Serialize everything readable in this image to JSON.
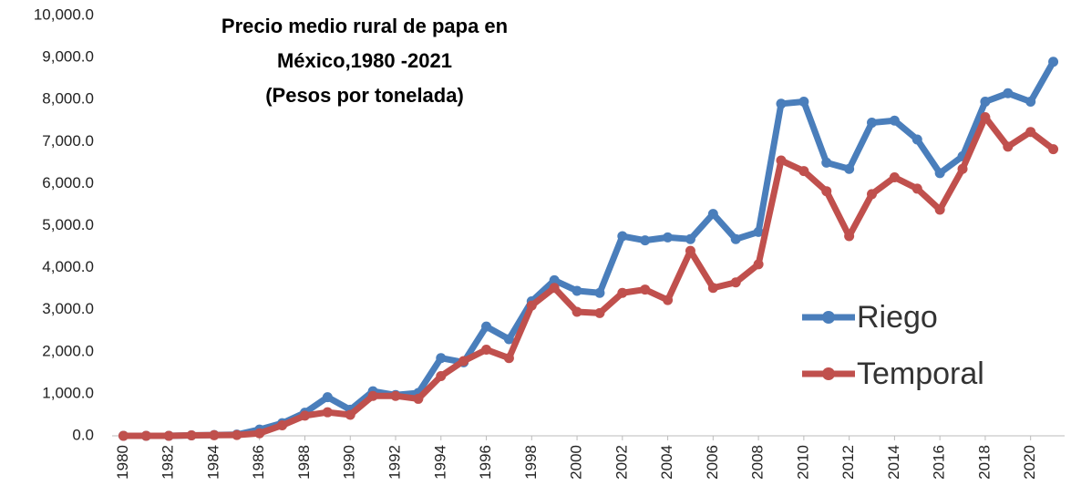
{
  "chart_data": {
    "type": "line",
    "title": [
      "Precio medio rural de papa en",
      "México,1980 -2021",
      "(Pesos por tonelada)"
    ],
    "x": [
      1980,
      1981,
      1982,
      1983,
      1984,
      1985,
      1986,
      1987,
      1988,
      1989,
      1990,
      1991,
      1992,
      1993,
      1994,
      1995,
      1996,
      1997,
      1998,
      1999,
      2000,
      2001,
      2002,
      2003,
      2004,
      2005,
      2006,
      2007,
      2008,
      2009,
      2010,
      2011,
      2012,
      2013,
      2014,
      2015,
      2016,
      2017,
      2018,
      2019,
      2020,
      2021
    ],
    "series": [
      {
        "name": "Riego",
        "color": "#4a7ebb",
        "values": [
          0,
          0,
          0,
          10,
          20,
          30,
          150,
          300,
          550,
          920,
          620,
          1060,
          970,
          1020,
          1850,
          1750,
          2600,
          2300,
          3200,
          3700,
          3450,
          3400,
          4750,
          4650,
          4720,
          4680,
          5280,
          4680,
          4850,
          7900,
          7950,
          6500,
          6350,
          7450,
          7500,
          7050,
          6250,
          6650,
          7950,
          8150,
          7950,
          8900
        ]
      },
      {
        "name": "Temporal",
        "color": "#c0504d",
        "values": [
          0,
          0,
          0,
          10,
          15,
          20,
          60,
          250,
          480,
          560,
          500,
          950,
          950,
          880,
          1420,
          1780,
          2050,
          1850,
          3100,
          3520,
          2950,
          2920,
          3400,
          3480,
          3230,
          4400,
          3520,
          3650,
          4080,
          6550,
          6300,
          5820,
          4750,
          5750,
          6150,
          5880,
          5380,
          6350,
          7580,
          6880,
          7230,
          6820
        ]
      }
    ],
    "xlim": [
      1979.5,
      2021.5
    ],
    "xticks": [
      1980,
      1982,
      1984,
      1986,
      1988,
      1990,
      1992,
      1994,
      1996,
      1998,
      2000,
      2002,
      2004,
      2006,
      2008,
      2010,
      2012,
      2014,
      2016,
      2018,
      2020
    ],
    "ylim": [
      0,
      10000
    ],
    "yticks": [
      {
        "value": 0,
        "label": "0.0"
      },
      {
        "value": 1000,
        "label": "1,000.0"
      },
      {
        "value": 2000,
        "label": "2,000.0"
      },
      {
        "value": 3000,
        "label": "3,000.0"
      },
      {
        "value": 4000,
        "label": "4,000.0"
      },
      {
        "value": 5000,
        "label": "5,000.0"
      },
      {
        "value": 6000,
        "label": "6,000.0"
      },
      {
        "value": 7000,
        "label": "7,000.0"
      },
      {
        "value": 8000,
        "label": "8,000.0"
      },
      {
        "value": 9000,
        "label": "9,000.0"
      },
      {
        "value": 10000,
        "label": "10,000.0"
      }
    ],
    "grid": false,
    "legend": "lower-right"
  }
}
